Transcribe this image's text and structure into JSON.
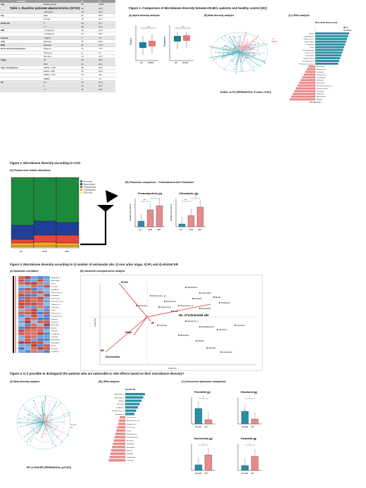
{
  "table1": {
    "caption": "Table 1. Baseline patients' characteristics (N=93)",
    "headers": [
      "Variables",
      "",
      "N",
      "%"
    ],
    "rows": [
      [
        "Age",
        "Median(range)",
        "59",
        "29-84"
      ],
      [
        "",
        "<60 years",
        "50",
        "53.8"
      ],
      [
        "",
        "≥ 60 years",
        "43",
        "46.2"
      ],
      [
        "Sex",
        "Male",
        "61",
        "65.6"
      ],
      [
        "",
        "Female",
        "32",
        "34.4"
      ],
      [
        "ECOG PS",
        "0",
        "63",
        "67.7"
      ],
      [
        "",
        "≥ 1",
        "30",
        "32.3"
      ],
      [
        "BMI",
        "< 25 (kg/m²)",
        "60",
        "64.5"
      ],
      [
        "",
        "≥ 25 (kg/m²)",
        "33",
        "35.5"
      ],
      [
        "Anemia",
        "<10g/dL",
        "7",
        "7.5"
      ],
      [
        "LDH",
        "Elevated",
        "55",
        "59.1"
      ],
      [
        "B2M",
        "Elevated",
        "11",
        "11.8"
      ],
      [
        "Bone marrow involvement",
        "Absence",
        "71",
        "76.3"
      ],
      [
        "",
        "Presence",
        "9",
        "9.7"
      ],
      [
        "",
        "Not done",
        "13",
        "14.0"
      ],
      [
        "Stage",
        "I/II",
        "52",
        "55.9"
      ],
      [
        "",
        "III/IV",
        "41",
        "44.1"
      ],
      [
        "Type of lymphoma",
        "DLBCL, GCB",
        "25",
        "26.9"
      ],
      [
        "",
        "DLBCL, ABC",
        "50",
        "53.8"
      ],
      [
        "",
        "DLBCL, NOS",
        "15",
        "16.1"
      ],
      [
        "",
        "PMBCL",
        "3",
        "3.2"
      ],
      [
        "IPI",
        "0-1",
        "44",
        "47.3"
      ],
      [
        "",
        "2",
        "23",
        "24.7"
      ],
      [
        "",
        "≥ 3",
        "26",
        "28.0"
      ]
    ]
  },
  "figure1": {
    "caption": "Figure 1. Comparison of Microbiome diversity between DLBCL patients and healthy control (HC)",
    "panel_a": "(A) alpha diversity analysis",
    "panel_b": "(B) Beta diversity analysis",
    "panel_c": "(C) LEfSe analysis",
    "beta_caption": "DLBCL vs HC (PERMANOVA, P-value <0.001)",
    "lefse_title": "Most LEfSe (Genus-level)",
    "legend": [
      "HC",
      "DLBCL"
    ],
    "alpha_ylabels": [
      "Chao1",
      "Shannon"
    ],
    "alpha_groups": [
      "HC",
      "DLBCL"
    ],
    "alpha_sig": "n.s",
    "lefse_xlabel": "LDA effect size",
    "lefse_labels": [
      "Blautia",
      "Agathobacter",
      "Ruminococcus",
      "Anaerostipes",
      "Roseburia",
      "Dorea",
      "Fusicatenibacter",
      "Coprococcus",
      "Lachnospira",
      "Eubacterium_g",
      "Faecalibacterium",
      "Ruminococcaceae_g",
      "Bacteroides",
      "Streptococcus",
      "Veillonella",
      "Enterococcus",
      "Lactobacillus",
      "Klebsiella",
      "Escherichia",
      "Enterobacteriaceae_g",
      "Parabacteroides",
      "Prevotella",
      "Citrobacter",
      "Akkermansia",
      "Alistipes"
    ],
    "colors": {
      "hc": "#2a8fa3",
      "dlbcl": "#e88a8a",
      "hc_box": "#1e7f92",
      "dlbcl_box": "#e57b7b"
    }
  },
  "figure2": {
    "caption": "Figure 2. Microbiome diversity according to COO",
    "panel_a": "(A) Phylum level relative abundance",
    "panel_b": "(B) Taxonomic comparison -- Proteobacteria and Citrobacter",
    "legend": [
      "Firmicutes",
      "Bacteroidetes",
      "Proteobacteria",
      "Actinobacteria",
      "ETC(<1%)"
    ],
    "stack_groups": [
      "HC",
      "GCB",
      "ABC"
    ],
    "stack_colors": [
      "#1c8a3c",
      "#1e3f9b",
      "#e8453c",
      "#f4a326",
      "#f5e66b"
    ],
    "stack_values": [
      [
        68,
        20,
        5,
        5,
        2
      ],
      [
        62,
        20,
        10,
        6,
        2
      ],
      [
        64,
        18,
        11,
        5,
        2
      ]
    ],
    "bar_titles": [
      "Proteobacteria (p)",
      "Citrobacter (g)"
    ],
    "bar_ylabel": "Relative abundance",
    "bar_groups": [
      "HC",
      "GCB",
      "ABC"
    ],
    "sig": [
      "***",
      "*"
    ]
  },
  "figure3": {
    "caption": "Figure 3. Microbiome diversity according to 1) number of extranodal site, 2) Ann arbor stage, 3) IPI, and 4) elicited ER",
    "panel_a": "(A) Spearman correlation",
    "panel_b": "(B) Canonical correspondence analysis",
    "cca_labels": [
      "ECOG",
      "Stage",
      "IPI",
      "ER",
      "No. of extranodal site",
      "Escherichia"
    ],
    "genera": [
      "Agathobacter",
      "Anaerostipes",
      "Blautia",
      "Prevotella",
      "Oscillibacter",
      "Ruminococcus_g",
      "Enterobacter",
      "Enterococcus",
      "Ruminococcus_g2",
      "Streptococcus",
      "Lachnospira",
      "Dorea",
      "Eubacterium_g",
      "Faecalibacterium",
      "Roseburia",
      "Citrobacter",
      "Bacteroides",
      "Alistipes",
      "Klebsiella",
      "Lactobacillus",
      "Collinsella"
    ],
    "axes": [
      "CCA2 (%)",
      "CCA1 (%)"
    ]
  },
  "figure4": {
    "caption": "Figure 4. Is it possible to distinguish the patients who are vulnerable to side effects based on their microbiome diversity?",
    "panel_a": "(A) Beta diversity analysis",
    "panel_b": "(B) LEfSe analysis",
    "panel_c": "(C) Genus-level taxonomic comparison",
    "beta_caption": "ER vs NON-ER (PERMANOVA, p=0.003)",
    "lefse_title": "Non-ER / ER",
    "legend": [
      "Non-ER",
      "ER"
    ],
    "genus_titles": [
      "Prevotella (g)",
      "Roseburia (g)",
      "Escherichia (g)",
      "Klebsiella (g)"
    ],
    "groups": [
      "Non-ER",
      "ER"
    ],
    "sig": "*"
  }
}
